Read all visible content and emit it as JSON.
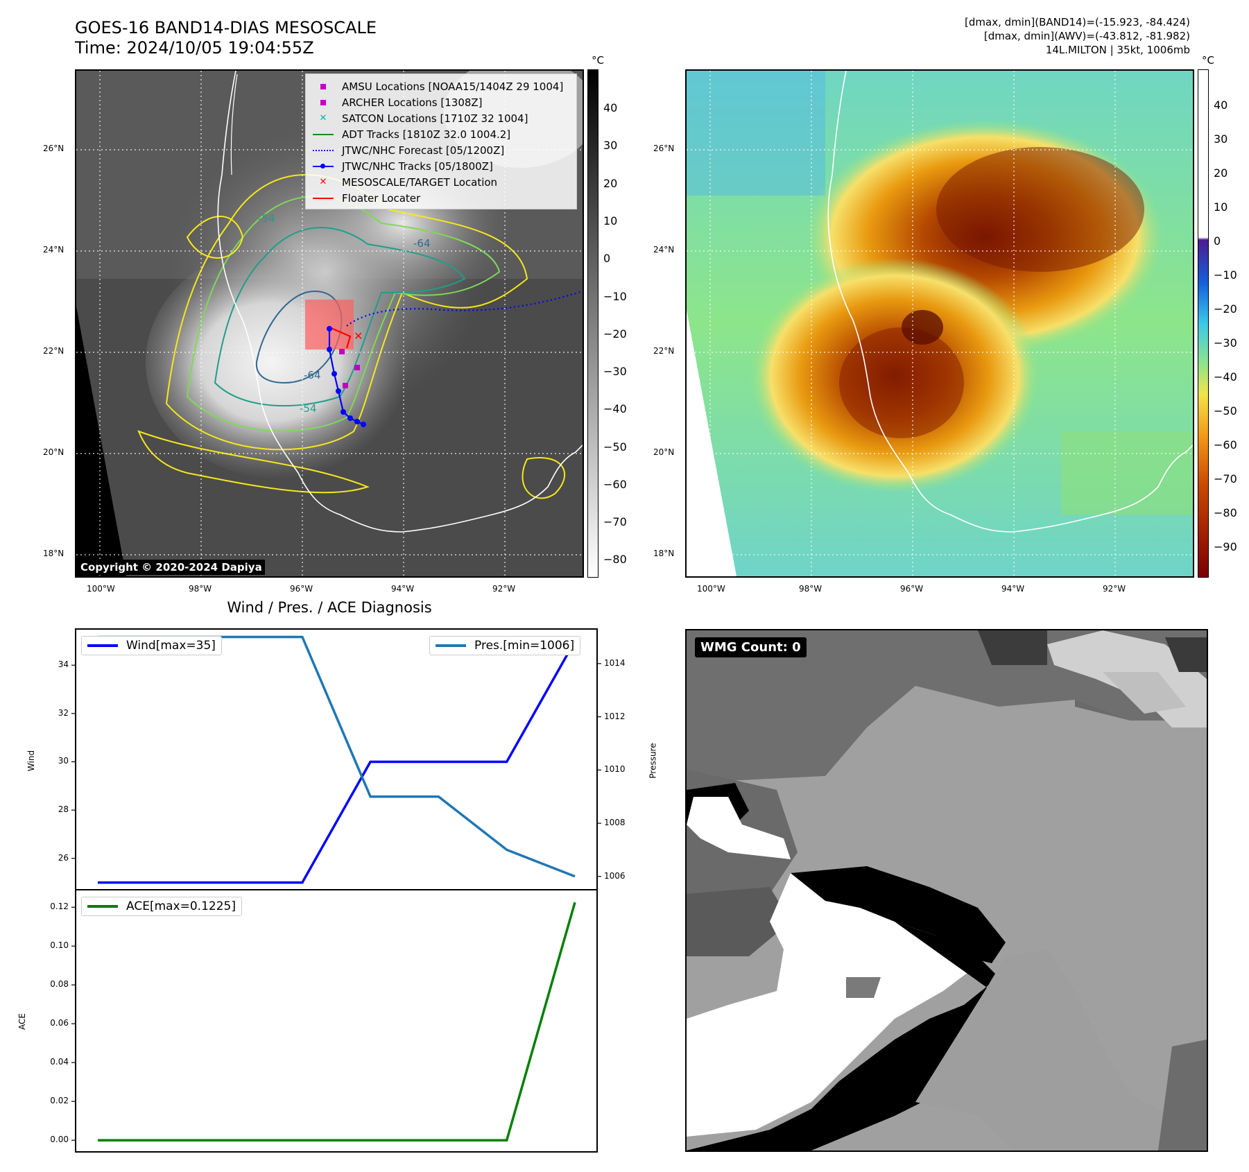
{
  "header": {
    "title_line1": "GOES-16 BAND14-DIAS MESOSCALE",
    "title_line2": "Time: 2024/10/05 19:04:55Z",
    "info_line1": "[dmax, dmin](BAND14)=(-15.923, -84.424)",
    "info_line2": "[dmax, dmin](AWV)=(-43.812, -81.982)",
    "info_line3": "14L.MILTON | 35kt, 1006mb"
  },
  "map": {
    "lat_labels": [
      "26°N",
      "24°N",
      "22°N",
      "20°N",
      "18°N"
    ],
    "lon_labels": [
      "100°W",
      "98°W",
      "96°W",
      "94°W",
      "92°W"
    ],
    "copyright": "Copyright © 2020-2024 Dapiya",
    "contour_labels": [
      "-54",
      "-64",
      "-64",
      "-54"
    ],
    "legend": [
      {
        "label": "AMSU Locations [NOAA15/1404Z 29 1004]",
        "marker": "square",
        "color": "#c000c0"
      },
      {
        "label": "ARCHER Locations [1308Z]",
        "marker": "square",
        "color": "#c000c0"
      },
      {
        "label": "SATCON Locations [1710Z 32 1004]",
        "marker": "x",
        "color": "#00b0b0"
      },
      {
        "label": "ADT Tracks [1810Z 32.0 1004.2]",
        "marker": "line",
        "color": "#1a8a1a"
      },
      {
        "label": "JTWC/NHC Forecast [05/1200Z]",
        "marker": "dotted",
        "color": "#0000ff"
      },
      {
        "label": "JTWC/NHC Tracks [05/1800Z]",
        "marker": "line-dot",
        "color": "#0000ff"
      },
      {
        "label": "MESOSCALE/TARGET Location",
        "marker": "x",
        "color": "#ff0000"
      },
      {
        "label": "Floater Locater",
        "marker": "line",
        "color": "#ff0000"
      }
    ]
  },
  "colorbar_left": {
    "unit": "°C",
    "ticks": [
      "40",
      "30",
      "20",
      "10",
      "0",
      "−10",
      "−20",
      "−30",
      "−40",
      "−50",
      "−60",
      "−70",
      "−80"
    ]
  },
  "colorbar_right": {
    "unit": "°C",
    "ticks": [
      "40",
      "30",
      "20",
      "10",
      "0",
      "−10",
      "−20",
      "−30",
      "−40",
      "−50",
      "−60",
      "−70",
      "−80",
      "−90"
    ]
  },
  "diagnosis": {
    "title": "Wind / Pres. / ACE Diagnosis",
    "wind_legend": "Wind[max=35]",
    "pres_legend": "Pres.[min=1006]",
    "ace_legend": "ACE[max=0.1225]",
    "wind_ylabel": "Wind",
    "pres_ylabel": "Pressure",
    "ace_ylabel": "ACE",
    "wind_ticks": [
      "34",
      "32",
      "30",
      "28",
      "26"
    ],
    "pres_ticks": [
      "1014",
      "1012",
      "1010",
      "1008",
      "1006"
    ],
    "ace_ticks": [
      "0.12",
      "0.10",
      "0.08",
      "0.06",
      "0.04",
      "0.02",
      "0.00"
    ]
  },
  "chart_data": [
    {
      "type": "line",
      "title": "Wind / Pres. / ACE Diagnosis",
      "x": [
        0,
        1,
        2,
        3,
        4,
        5,
        6,
        7
      ],
      "series": [
        {
          "name": "Wind[max=35]",
          "color": "#0000ff",
          "axis": "left",
          "values": [
            25,
            25,
            25,
            25,
            30,
            30,
            30,
            35
          ]
        },
        {
          "name": "Pres.[min=1006]",
          "color": "#1f77b4",
          "axis": "right",
          "values": [
            1015,
            1015,
            1015,
            1015,
            1009,
            1009,
            1007,
            1006
          ]
        }
      ],
      "ylabel": "Wind",
      "y2label": "Pressure",
      "ylim": [
        24.7,
        35.5
      ],
      "y2lim": [
        1005.5,
        1015.3
      ]
    },
    {
      "type": "line",
      "x": [
        0,
        1,
        2,
        3,
        4,
        5,
        6,
        7
      ],
      "series": [
        {
          "name": "ACE[max=0.1225]",
          "color": "#008000",
          "values": [
            0,
            0,
            0,
            0,
            0,
            0,
            0,
            0.1225
          ]
        }
      ],
      "ylabel": "ACE",
      "ylim": [
        -0.006,
        0.129
      ]
    }
  ],
  "wmg": {
    "label": "WMG Count: 0"
  }
}
